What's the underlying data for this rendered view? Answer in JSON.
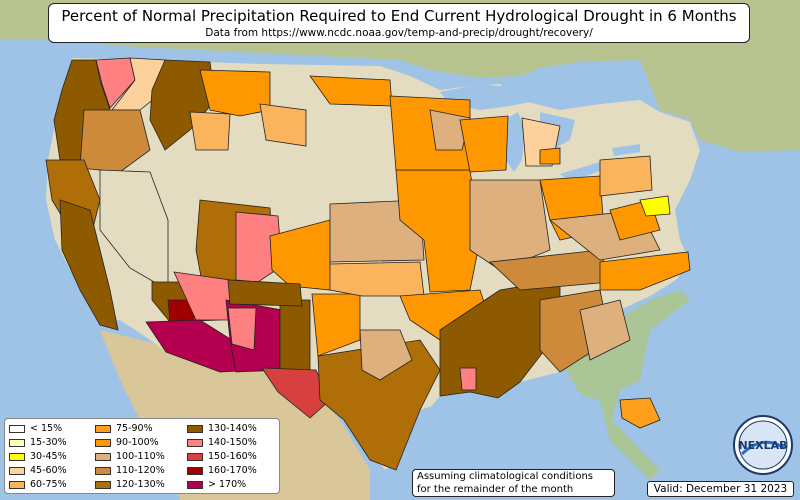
{
  "title": "Percent of Normal Precipitation Required to End Current Hydrological Drought in 6 Months",
  "subtitle": "Data from https://www.ncdc.noaa.gov/temp-and-precip/drought/recovery/",
  "legend": [
    {
      "label": "< 15%",
      "color": "#ffffff"
    },
    {
      "label": "15-30%",
      "color": "#ffffc0"
    },
    {
      "label": "30-45%",
      "color": "#ffff00"
    },
    {
      "label": "45-60%",
      "color": "#fcd19c"
    },
    {
      "label": "60-75%",
      "color": "#fbb45e"
    },
    {
      "label": "75-90%",
      "color": "#ff9f1c"
    },
    {
      "label": "90-100%",
      "color": "#ff9800"
    },
    {
      "label": "100-110%",
      "color": "#ddb07e"
    },
    {
      "label": "110-120%",
      "color": "#cc8a3a"
    },
    {
      "label": "120-130%",
      "color": "#b06e08"
    },
    {
      "label": "130-140%",
      "color": "#8e5a00"
    },
    {
      "label": "140-150%",
      "color": "#ff8080"
    },
    {
      "label": "150-160%",
      "color": "#d84040"
    },
    {
      "label": "160-170%",
      "color": "#a00000"
    },
    {
      "label": "> 170%",
      "color": "#b4004e"
    }
  ],
  "note": {
    "line1": "Assuming climatological conditions",
    "line2": "for the remainder of the month"
  },
  "valid": "Valid: December 31 2023",
  "logo_text": "NEXLAB"
}
